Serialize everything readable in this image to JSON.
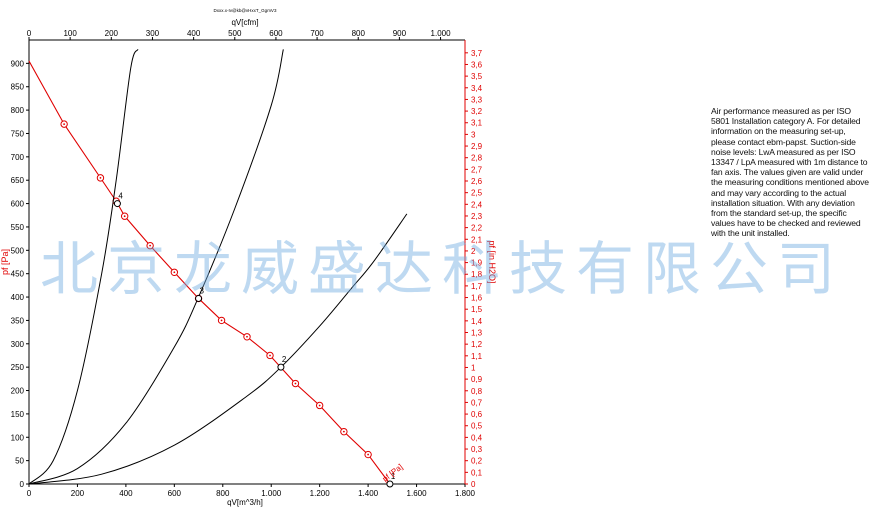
{
  "chart_data": {
    "type": "line",
    "title": "Dxxx.x-Iv@kb@vHxxT_GgmV3",
    "xlabel": "qV[m^3/h]",
    "x2label": "qV[cfm]",
    "ylabel": "pf [Pa]",
    "y2label": "pf [in H2O]",
    "xlim": [
      0,
      1800
    ],
    "ylim": [
      0,
      950
    ],
    "x2lim": [
      0,
      1059.4
    ],
    "y2lim": [
      0,
      3.81
    ],
    "grid": false,
    "x_ticks": [
      "0",
      "200",
      "400",
      "600",
      "800",
      "1.000",
      "1.200",
      "1.400",
      "1.600",
      "1.800"
    ],
    "x2_ticks": [
      "0",
      "100",
      "200",
      "300",
      "400",
      "500",
      "600",
      "700",
      "800",
      "900",
      "1.000"
    ],
    "y_ticks": [
      "0",
      "50",
      "100",
      "150",
      "200",
      "250",
      "300",
      "350",
      "400",
      "450",
      "500",
      "550",
      "600",
      "650",
      "700",
      "750",
      "800",
      "850",
      "900"
    ],
    "y2_ticks": [
      "0",
      "0,1",
      "0,2",
      "0,3",
      "0,4",
      "0,5",
      "0,6",
      "0,7",
      "0,8",
      "0,9",
      "1",
      "1,1",
      "1,2",
      "1,3",
      "1,4",
      "1,5",
      "1,6",
      "1,7",
      "1,8",
      "1,9",
      "2",
      "2,1",
      "2,2",
      "2,3",
      "2,4",
      "2,5",
      "2,6",
      "2,7",
      "2,8",
      "2,9",
      "3",
      "3,1",
      "3,2",
      "3,3",
      "3,4",
      "3,5",
      "3,6",
      "3,7"
    ],
    "series": [
      {
        "name": "pf [Pa]",
        "color": "#e00000",
        "marker": "circle",
        "x": [
          0,
          145,
          295,
          360,
          395,
          500,
          600,
          700,
          795,
          900,
          995,
          1100,
          1200,
          1300,
          1400,
          1490
        ],
        "y": [
          905,
          770,
          655,
          605,
          573,
          510,
          453,
          397,
          350,
          315,
          275,
          215,
          168,
          112,
          63,
          0
        ]
      },
      {
        "name": "",
        "color": "#000000",
        "marker": "none",
        "x": [
          0,
          100,
          200,
          300,
          360,
          420,
          450
        ],
        "y": [
          0,
          50,
          200,
          450,
          650,
          890,
          930
        ]
      },
      {
        "name": "",
        "color": "#000000",
        "marker": "none",
        "x": [
          0,
          200,
          400,
          600,
          700,
          850,
          1000,
          1050
        ],
        "y": [
          0,
          33,
          130,
          293,
          400,
          590,
          810,
          930
        ]
      },
      {
        "name": "",
        "color": "#000000",
        "marker": "none",
        "x": [
          0,
          300,
          600,
          900,
          1040,
          1200,
          1330,
          1420,
          1560
        ],
        "y": [
          0,
          21,
          83,
          188,
          250,
          338,
          418,
          474,
          578
        ]
      }
    ],
    "operating_points": [
      {
        "label": "1",
        "x": 1490,
        "y": 0
      },
      {
        "label": "2",
        "x": 1040,
        "y": 250
      },
      {
        "label": "3",
        "x": 700,
        "y": 397
      },
      {
        "label": "4",
        "x": 365,
        "y": 600
      }
    ],
    "annotations": [
      "pf [Pa]"
    ]
  },
  "note": "Air performance measured as per ISO 5801 Installation category A. For detailed information on the measuring set-up, please contact ebm-papst. Suction-side noise levels: LwA measured as per ISO 13347 / LpA measured with 1m distance to fan axis. The values given are valid under the measuring conditions mentioned above and may vary according to the actual installation situation. With any deviation from the standard set-up, the specific values have to be checked and reviewed with the unit installed.",
  "watermark": "北京龙威盛达科技有限公司"
}
